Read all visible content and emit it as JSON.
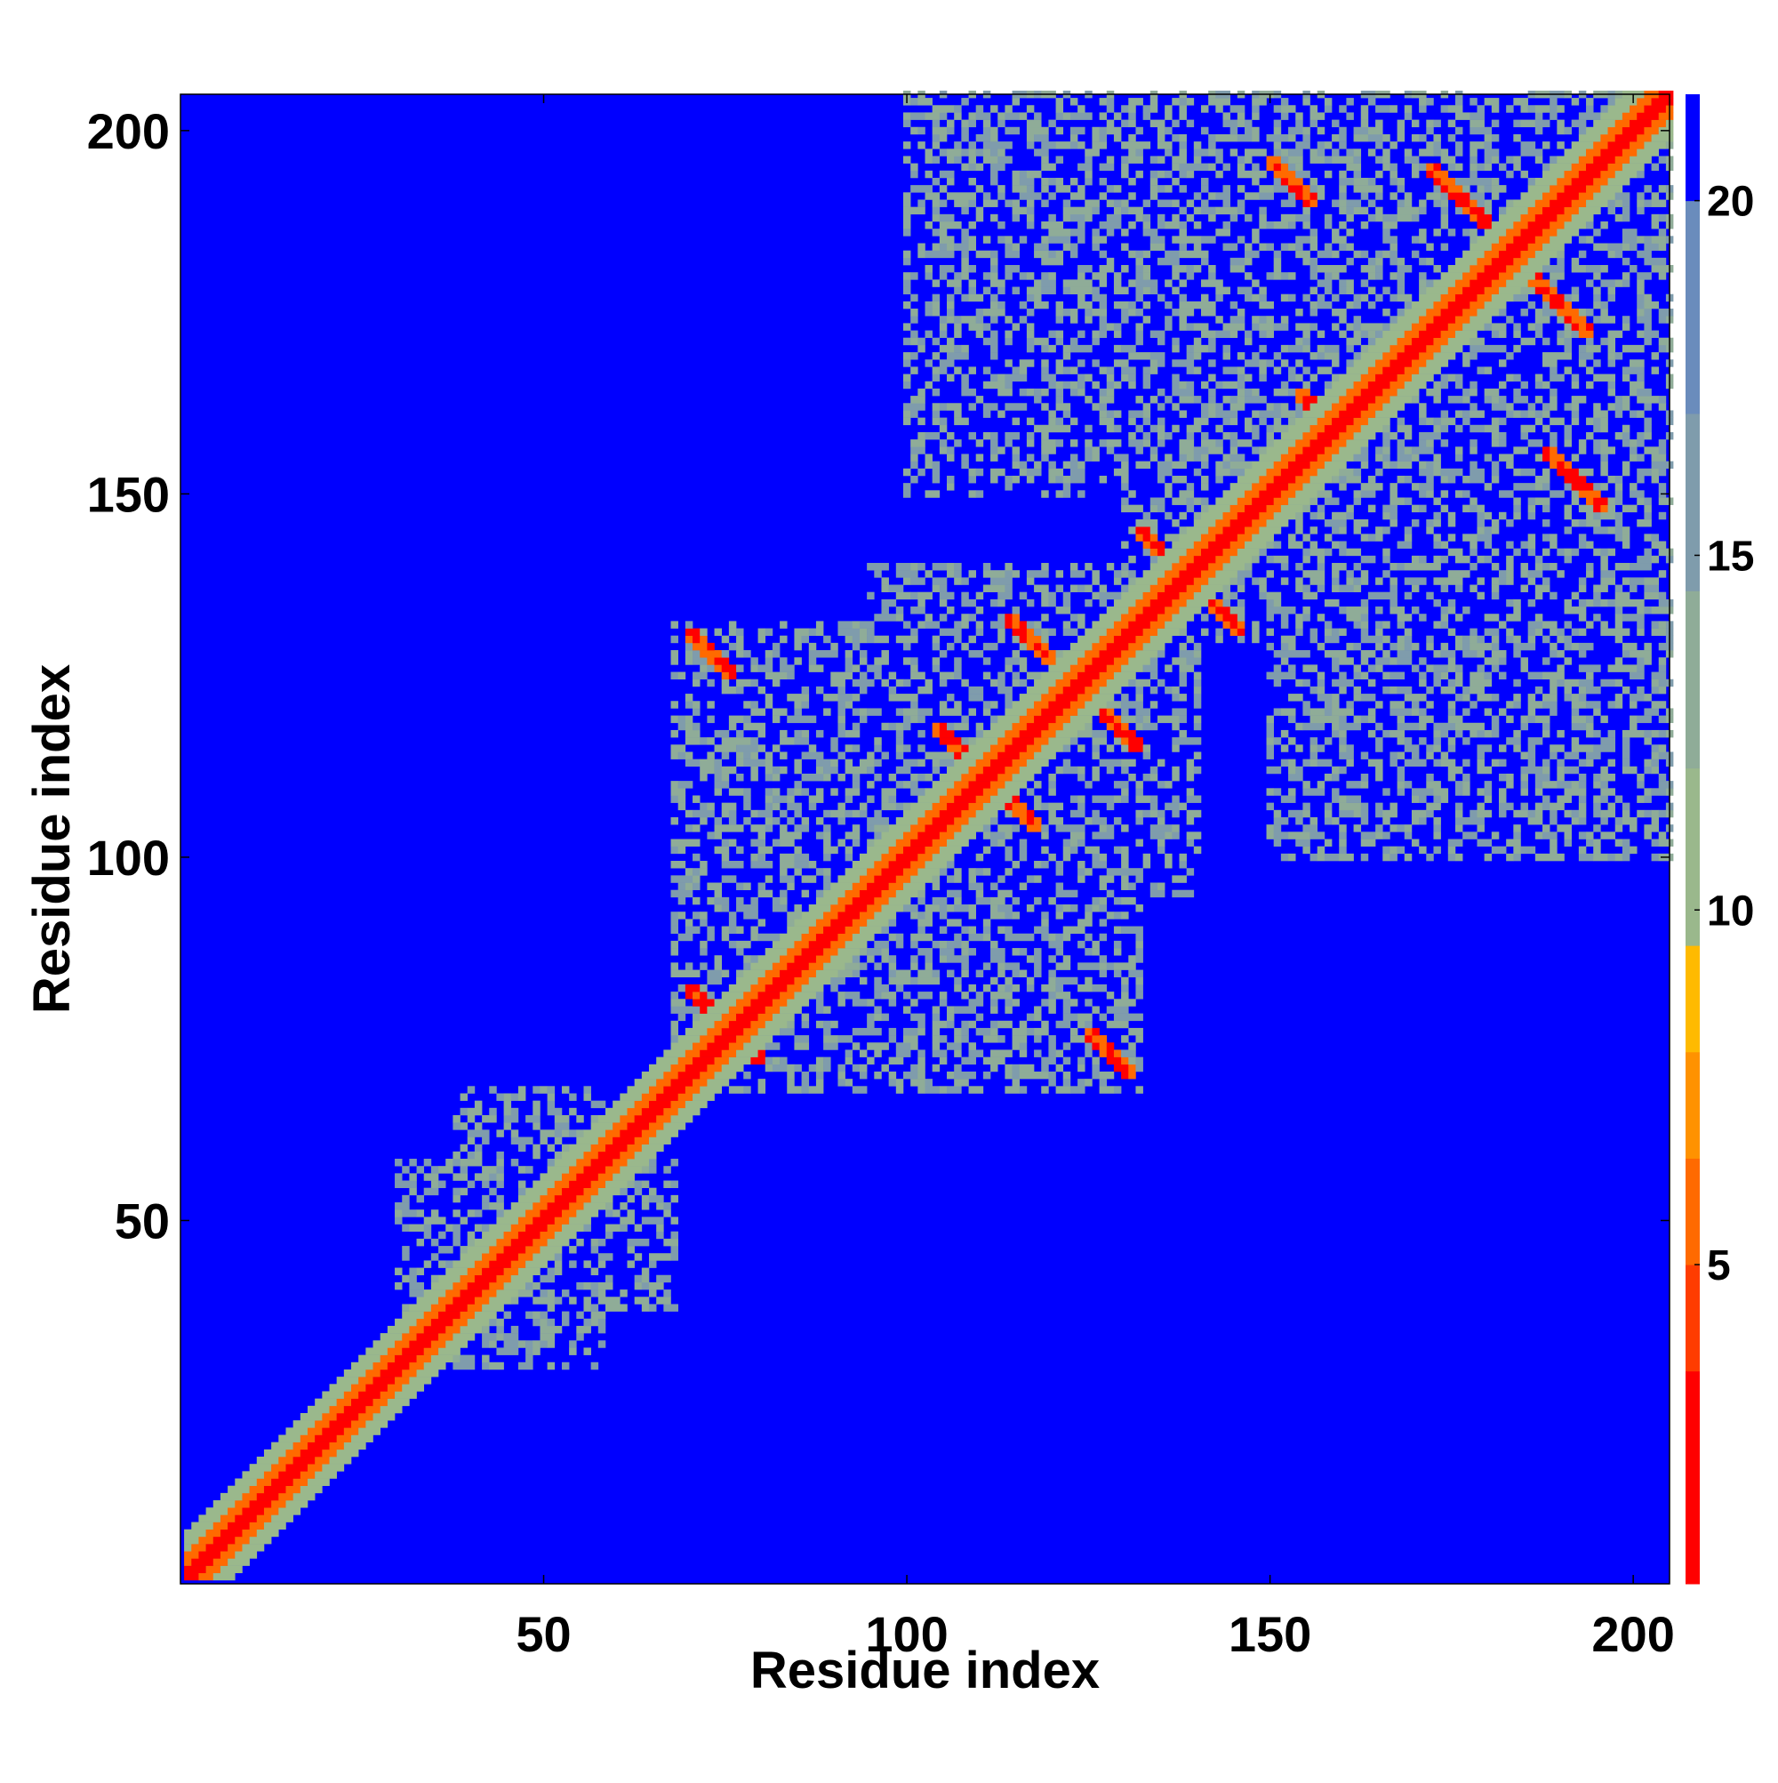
{
  "chart_data": {
    "type": "heatmap",
    "title": "",
    "xlabel": "Residue index",
    "ylabel": "Residue index",
    "xlim": [
      1,
      205
    ],
    "ylim": [
      1,
      205
    ],
    "xticks": [
      50,
      100,
      150,
      200
    ],
    "yticks": [
      50,
      100,
      150,
      200
    ],
    "colorbar": {
      "ticks": [
        5,
        10,
        15,
        20
      ],
      "range": [
        0.5,
        21.5
      ],
      "colors": [
        "#ff0000",
        "#ff3c00",
        "#ff6a00",
        "#ff9200",
        "#ffba00",
        "#9ab88c",
        "#8fac98",
        "#7f9cac",
        "#6a8cbc",
        "#0000ff"
      ],
      "bounds": [
        0.5,
        3.5,
        5,
        6.5,
        8,
        9.5,
        12,
        14.5,
        17,
        20,
        21.5
      ]
    },
    "background_value": 21,
    "description_values": {
      "diagonal_core": 1,
      "diagonal_near": 6,
      "diagonal_band": 11,
      "sparse_contact": 13
    },
    "dense_contact_regions": [
      {
        "x": [
          38,
          58
        ],
        "y": [
          30,
          68
        ]
      },
      {
        "x": [
          68,
          110
        ],
        "y": [
          70,
          132
        ]
      },
      {
        "x": [
          100,
          140
        ],
        "y": [
          95,
          140
        ]
      },
      {
        "x": [
          130,
          200
        ],
        "y": [
          140,
          205
        ]
      },
      {
        "x": [
          150,
          205
        ],
        "y": [
          100,
          160
        ]
      }
    ],
    "secondary_structure_crossings": [
      {
        "center": [
          75,
          77
        ],
        "half_length": 5
      },
      {
        "center": [
          73,
          128
        ],
        "half_length": 3
      },
      {
        "center": [
          111,
          111
        ],
        "half_length": 7
      },
      {
        "center": [
          123,
          124
        ],
        "half_length": 9
      },
      {
        "center": [
          139,
          138
        ],
        "half_length": 7
      },
      {
        "center": [
          153,
          193
        ],
        "half_length": 3
      },
      {
        "center": [
          158,
          160
        ],
        "half_length": 4
      },
      {
        "center": [
          176,
          191
        ],
        "half_length": 4
      },
      {
        "center": [
          190,
          176
        ],
        "half_length": 4
      },
      {
        "center": [
          192,
          152
        ],
        "half_length": 4
      },
      {
        "center": [
          128,
          73
        ],
        "half_length": 3
      }
    ]
  }
}
